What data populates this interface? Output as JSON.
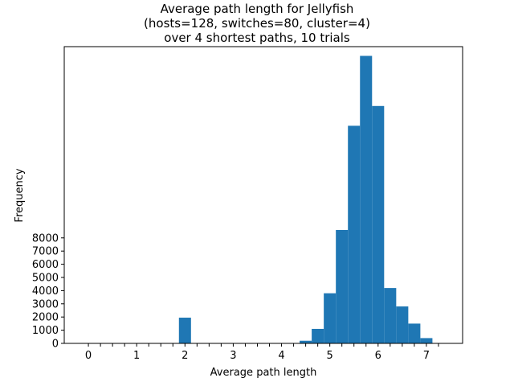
{
  "chart_data": {
    "type": "bar",
    "title_lines": [
      "Average path length for Jellyfish",
      "(hosts=128, switches=80, cluster=4)",
      "over 4 shortest paths, 10 trials"
    ],
    "xlabel": "Average path length",
    "ylabel": "Frequency",
    "xlim": [
      -0.5,
      7.75
    ],
    "ylim": [
      0,
      22500
    ],
    "bin_width": 0.25,
    "xticks": [
      0,
      1,
      2,
      3,
      4,
      5,
      6,
      7
    ],
    "xtick_labels": [
      "0",
      "1",
      "2",
      "3",
      "4",
      "5",
      "6",
      "7"
    ],
    "xminor_ticks": [
      0.25,
      0.5,
      0.75,
      1.25,
      1.5,
      1.75,
      2.25,
      2.5,
      2.75,
      3.25,
      3.5,
      3.75,
      4.25,
      4.5,
      4.75,
      5.25,
      5.5,
      5.75,
      6.25,
      6.5,
      6.75,
      7.25
    ],
    "yticks": [
      0,
      1000,
      2000,
      3000,
      4000,
      5000,
      6000,
      7000,
      8000
    ],
    "ytick_labels": [
      "0",
      "1000",
      "2000",
      "3000",
      "4000",
      "5000",
      "6000",
      "7000",
      "8000"
    ],
    "bar_color": "#1f77b4",
    "bins": [
      {
        "x": 1.875,
        "value": 1950
      },
      {
        "x": 4.375,
        "value": 200
      },
      {
        "x": 4.625,
        "value": 1100
      },
      {
        "x": 4.875,
        "value": 3800
      },
      {
        "x": 5.125,
        "value": 8600
      },
      {
        "x": 5.375,
        "value": 16500
      },
      {
        "x": 5.625,
        "value": 21800
      },
      {
        "x": 5.875,
        "value": 18000
      },
      {
        "x": 6.125,
        "value": 4200
      },
      {
        "x": 6.375,
        "value": 2800
      },
      {
        "x": 6.625,
        "value": 1500
      },
      {
        "x": 6.875,
        "value": 400
      }
    ]
  }
}
